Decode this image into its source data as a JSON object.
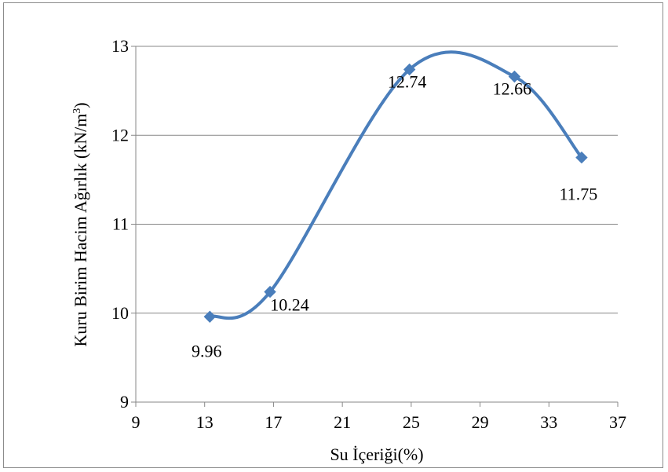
{
  "chart_data": {
    "type": "line",
    "title": "",
    "xlabel": "Su İçeriği(%)",
    "ylabel_main": "Kuru Birim Hacim Ağırlık (kN/m",
    "ylabel_sup": "3",
    "ylabel_end": ")",
    "xlim": [
      9,
      37
    ],
    "ylim": [
      9,
      13
    ],
    "xticks": [
      9,
      13,
      17,
      21,
      25,
      29,
      33,
      37
    ],
    "yticks": [
      9,
      10,
      11,
      12,
      13
    ],
    "grid": "horizontal",
    "smooth": true,
    "series": [
      {
        "color": "#4a7ebb",
        "x": [
          13.3,
          16.8,
          24.9,
          31.0,
          34.9
        ],
        "y": [
          9.96,
          10.24,
          12.74,
          12.66,
          11.75
        ],
        "labels": [
          "9.96",
          "10.24",
          "12.74",
          "12.66",
          "11.75"
        ]
      }
    ]
  }
}
